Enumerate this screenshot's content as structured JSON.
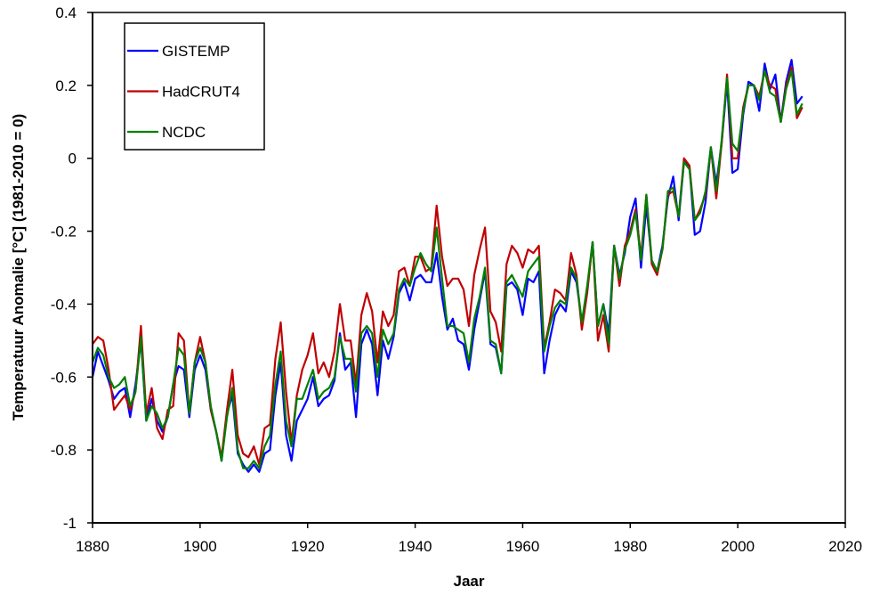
{
  "chart_data": {
    "type": "line",
    "title": "",
    "xlabel": "Jaar",
    "ylabel": "Temperatuur Anomalie [°C] (1981-2010 = 0)",
    "xlim": [
      1880,
      2020
    ],
    "ylim": [
      -1,
      0.4
    ],
    "xticks": [
      "1880",
      "1900",
      "1920",
      "1940",
      "1960",
      "1980",
      "2000",
      "2020"
    ],
    "yticks": [
      "0.4",
      "0.2",
      "0",
      "-0.2",
      "-0.4",
      "-0.6",
      "-0.8",
      "-1"
    ],
    "xtick_values": [
      1880,
      1900,
      1920,
      1940,
      1960,
      1980,
      2000,
      2020
    ],
    "ytick_values": [
      0.4,
      0.2,
      0,
      -0.2,
      -0.4,
      -0.6,
      -0.8,
      -1
    ],
    "grid": false,
    "legend_position": "top-left",
    "x_start": 1880,
    "series": [
      {
        "name": "GISTEMP",
        "color": "#0000ff",
        "values": [
          -0.6,
          -0.53,
          -0.57,
          -0.61,
          -0.66,
          -0.64,
          -0.63,
          -0.71,
          -0.62,
          -0.5,
          -0.72,
          -0.66,
          -0.72,
          -0.75,
          -0.71,
          -0.62,
          -0.57,
          -0.58,
          -0.71,
          -0.58,
          -0.54,
          -0.58,
          -0.69,
          -0.75,
          -0.83,
          -0.7,
          -0.65,
          -0.81,
          -0.84,
          -0.86,
          -0.84,
          -0.86,
          -0.81,
          -0.8,
          -0.65,
          -0.56,
          -0.76,
          -0.83,
          -0.72,
          -0.69,
          -0.66,
          -0.6,
          -0.68,
          -0.66,
          -0.65,
          -0.61,
          -0.48,
          -0.58,
          -0.56,
          -0.71,
          -0.51,
          -0.47,
          -0.51,
          -0.65,
          -0.5,
          -0.55,
          -0.49,
          -0.37,
          -0.34,
          -0.39,
          -0.33,
          -0.32,
          -0.34,
          -0.34,
          -0.26,
          -0.38,
          -0.47,
          -0.44,
          -0.5,
          -0.51,
          -0.58,
          -0.47,
          -0.39,
          -0.31,
          -0.51,
          -0.52,
          -0.59,
          -0.35,
          -0.34,
          -0.36,
          -0.43,
          -0.33,
          -0.34,
          -0.31,
          -0.59,
          -0.5,
          -0.43,
          -0.4,
          -0.42,
          -0.31,
          -0.34,
          -0.45,
          -0.36,
          -0.23,
          -0.46,
          -0.4,
          -0.48,
          -0.24,
          -0.32,
          -0.26,
          -0.16,
          -0.11,
          -0.3,
          -0.13,
          -0.28,
          -0.31,
          -0.24,
          -0.11,
          -0.05,
          -0.17,
          -0.01,
          -0.02,
          -0.21,
          -0.2,
          -0.12,
          0.03,
          -0.07,
          0.04,
          0.21,
          -0.04,
          -0.03,
          0.12,
          0.21,
          0.2,
          0.13,
          0.26,
          0.19,
          0.23,
          0.1,
          0.21,
          0.27,
          0.15,
          0.17
        ]
      },
      {
        "name": "HadCRUT4",
        "color": "#c00000",
        "values": [
          -0.51,
          -0.49,
          -0.5,
          -0.58,
          -0.69,
          -0.67,
          -0.65,
          -0.69,
          -0.64,
          -0.46,
          -0.7,
          -0.63,
          -0.74,
          -0.77,
          -0.69,
          -0.68,
          -0.48,
          -0.5,
          -0.7,
          -0.56,
          -0.49,
          -0.56,
          -0.69,
          -0.75,
          -0.82,
          -0.69,
          -0.58,
          -0.76,
          -0.81,
          -0.82,
          -0.79,
          -0.84,
          -0.74,
          -0.73,
          -0.55,
          -0.45,
          -0.64,
          -0.78,
          -0.65,
          -0.58,
          -0.54,
          -0.48,
          -0.59,
          -0.56,
          -0.6,
          -0.53,
          -0.4,
          -0.5,
          -0.5,
          -0.62,
          -0.43,
          -0.37,
          -0.42,
          -0.56,
          -0.42,
          -0.46,
          -0.43,
          -0.31,
          -0.3,
          -0.35,
          -0.27,
          -0.27,
          -0.31,
          -0.3,
          -0.13,
          -0.27,
          -0.35,
          -0.33,
          -0.33,
          -0.36,
          -0.46,
          -0.32,
          -0.25,
          -0.19,
          -0.42,
          -0.45,
          -0.53,
          -0.29,
          -0.24,
          -0.26,
          -0.3,
          -0.25,
          -0.26,
          -0.24,
          -0.52,
          -0.45,
          -0.36,
          -0.37,
          -0.39,
          -0.26,
          -0.32,
          -0.47,
          -0.37,
          -0.23,
          -0.5,
          -0.43,
          -0.53,
          -0.24,
          -0.35,
          -0.24,
          -0.2,
          -0.14,
          -0.27,
          -0.1,
          -0.29,
          -0.32,
          -0.25,
          -0.1,
          -0.09,
          -0.16,
          0.0,
          -0.02,
          -0.17,
          -0.14,
          -0.1,
          0.03,
          -0.11,
          0.04,
          0.23,
          0.0,
          0.0,
          0.14,
          0.2,
          0.2,
          0.17,
          0.24,
          0.2,
          0.19,
          0.1,
          0.2,
          0.25,
          0.11,
          0.14
        ]
      },
      {
        "name": "NCDC",
        "color": "#008000",
        "values": [
          -0.56,
          -0.52,
          -0.54,
          -0.6,
          -0.63,
          -0.62,
          -0.6,
          -0.68,
          -0.64,
          -0.49,
          -0.72,
          -0.68,
          -0.7,
          -0.74,
          -0.71,
          -0.62,
          -0.52,
          -0.54,
          -0.7,
          -0.56,
          -0.52,
          -0.56,
          -0.68,
          -0.75,
          -0.83,
          -0.71,
          -0.63,
          -0.8,
          -0.85,
          -0.85,
          -0.83,
          -0.85,
          -0.79,
          -0.76,
          -0.62,
          -0.53,
          -0.72,
          -0.79,
          -0.66,
          -0.66,
          -0.62,
          -0.58,
          -0.66,
          -0.64,
          -0.63,
          -0.6,
          -0.49,
          -0.55,
          -0.55,
          -0.64,
          -0.48,
          -0.46,
          -0.48,
          -0.6,
          -0.47,
          -0.51,
          -0.48,
          -0.36,
          -0.33,
          -0.35,
          -0.3,
          -0.26,
          -0.29,
          -0.31,
          -0.19,
          -0.33,
          -0.46,
          -0.46,
          -0.47,
          -0.48,
          -0.56,
          -0.44,
          -0.38,
          -0.3,
          -0.5,
          -0.51,
          -0.59,
          -0.34,
          -0.32,
          -0.35,
          -0.38,
          -0.31,
          -0.29,
          -0.27,
          -0.53,
          -0.46,
          -0.41,
          -0.39,
          -0.4,
          -0.3,
          -0.33,
          -0.45,
          -0.35,
          -0.23,
          -0.46,
          -0.4,
          -0.51,
          -0.24,
          -0.33,
          -0.25,
          -0.21,
          -0.15,
          -0.28,
          -0.1,
          -0.28,
          -0.31,
          -0.25,
          -0.09,
          -0.08,
          -0.16,
          -0.01,
          -0.03,
          -0.17,
          -0.15,
          -0.09,
          0.03,
          -0.09,
          0.05,
          0.22,
          0.04,
          0.02,
          0.13,
          0.2,
          0.2,
          0.16,
          0.24,
          0.18,
          0.17,
          0.1,
          0.19,
          0.24,
          0.12,
          0.15
        ]
      }
    ]
  }
}
